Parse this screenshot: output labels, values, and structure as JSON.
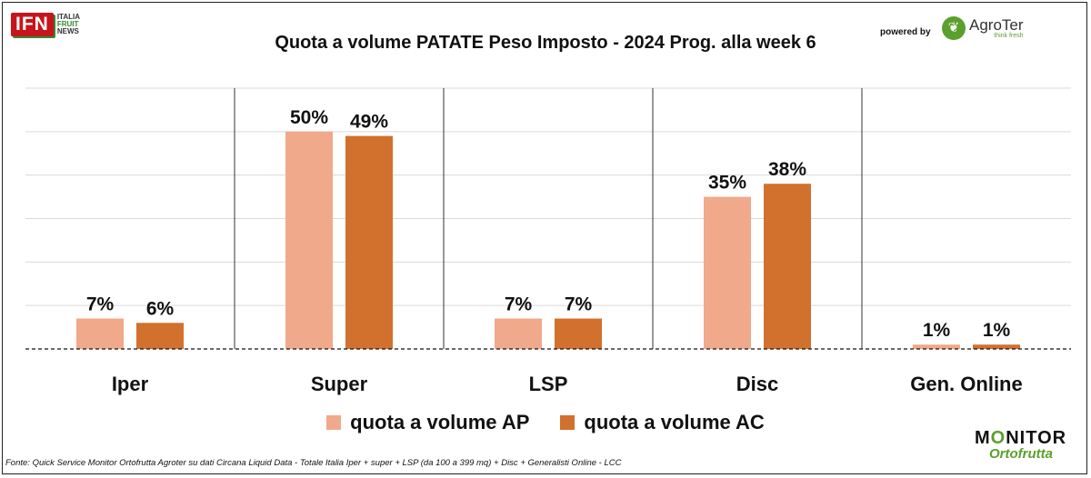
{
  "header": {
    "title": "Quota a volume PATATE Peso Imposto - 2024 Prog. alla week 6",
    "ifn_logo": "IFN",
    "ifn_line1": "ITALIA",
    "ifn_line2": "FRUIT",
    "ifn_line3": "NEWS",
    "powered_by": "powered by",
    "agroter_name": "AgroTer",
    "agroter_tagline": "think fresh"
  },
  "footer": {
    "source": "Fonte: Quick Service Monitor Ortofrutta Agroter su dati Circana Liquid Data - Totale Italia Iper + super + LSP (da 100 a 399 mq) + Disc + Generalisti Online - LCC",
    "monitor_line1_a": "M",
    "monitor_line1_o": "O",
    "monitor_line1_b": "NITOR",
    "monitor_line2": "Ortofrutta"
  },
  "colors": {
    "ap": "#f0a98a",
    "ac": "#d2702e"
  },
  "chart_data": {
    "type": "bar",
    "title": "Quota a volume PATATE Peso Imposto - 2024 Prog. alla week 6",
    "categories": [
      "Iper",
      "Super",
      "LSP",
      "Disc",
      "Gen. Online"
    ],
    "series": [
      {
        "name": "quota a volume AP",
        "values": [
          7,
          50,
          7,
          35,
          1
        ],
        "labels": [
          "7%",
          "50%",
          "7%",
          "35%",
          "1%"
        ]
      },
      {
        "name": "quota a volume AC",
        "values": [
          6,
          49,
          7,
          38,
          1
        ],
        "labels": [
          "6%",
          "49%",
          "7%",
          "38%",
          "1%"
        ]
      }
    ],
    "ylim": [
      0,
      60
    ],
    "unit": "%",
    "grid": true,
    "legend": "bottom"
  }
}
